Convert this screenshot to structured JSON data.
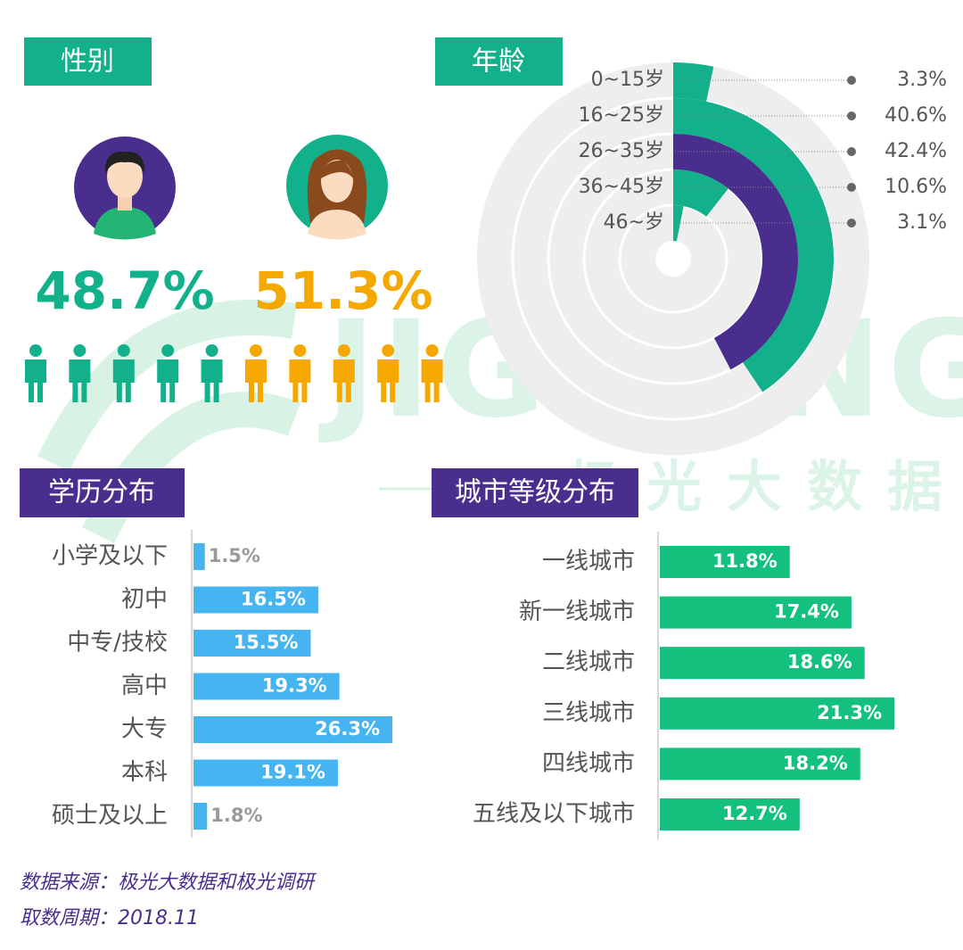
{
  "watermark": {
    "logo": "JIGUANG",
    "name": "极光大数据"
  },
  "footer": {
    "source": "数据来源：极光大数据和极光调研",
    "period": "取数周期：2018.11"
  },
  "chart_data": [
    {
      "type": "pictograph",
      "title": "性别",
      "values": [
        48.7,
        51.3
      ],
      "value_labels": [
        "48.7%",
        "51.3%"
      ],
      "colors": [
        "#13b08c",
        "#f5a800"
      ]
    },
    {
      "type": "radial_bar",
      "title": "年龄",
      "categories": [
        "0~15岁",
        "16~25岁",
        "26~35岁",
        "36~45岁",
        "46~岁"
      ],
      "values": [
        3.3,
        40.6,
        42.4,
        10.6,
        3.1
      ],
      "value_labels": [
        "3.3%",
        "40.6%",
        "42.4%",
        "10.6%",
        "3.1%"
      ],
      "colors": [
        "#13b08c",
        "#13b08c",
        "#4a2e8e",
        "#13b08c",
        "#13b08c"
      ]
    },
    {
      "type": "hbar",
      "title": "学历分布",
      "categories": [
        "小学及以下",
        "初中",
        "中专/技校",
        "高中",
        "大专",
        "本科",
        "硕士及以上"
      ],
      "values": [
        1.5,
        16.5,
        15.5,
        19.3,
        26.3,
        19.1,
        1.8
      ],
      "value_labels": [
        "1.5%",
        "16.5%",
        "15.5%",
        "19.3%",
        "26.3%",
        "19.1%",
        "1.8%"
      ],
      "color": "#45b4f0"
    },
    {
      "type": "hbar",
      "title": "城市等级分布",
      "categories": [
        "一线城市",
        "新一线城市",
        "二线城市",
        "三线城市",
        "四线城市",
        "五线及以下城市"
      ],
      "values": [
        11.8,
        17.4,
        18.6,
        21.3,
        18.2,
        12.7
      ],
      "value_labels": [
        "11.8%",
        "17.4%",
        "18.6%",
        "21.3%",
        "18.2%",
        "12.7%"
      ],
      "color": "#14c07e"
    }
  ]
}
